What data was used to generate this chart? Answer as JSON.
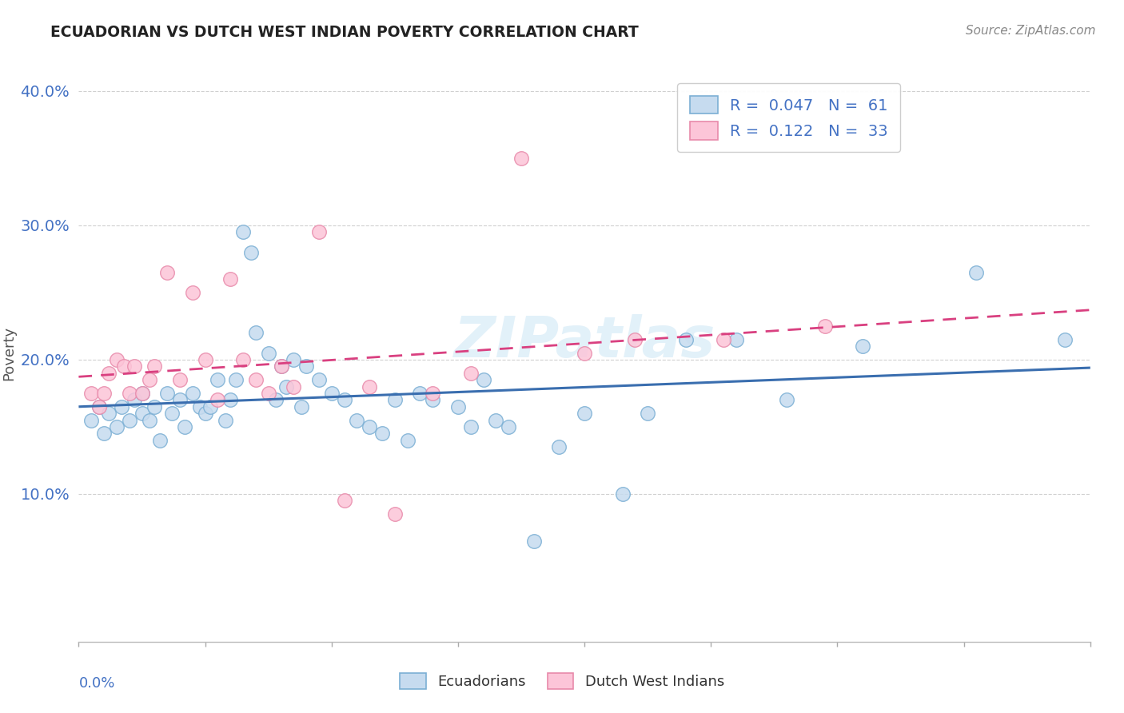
{
  "title": "ECUADORIAN VS DUTCH WEST INDIAN POVERTY CORRELATION CHART",
  "source": "Source: ZipAtlas.com",
  "ylabel": "Poverty",
  "xlim": [
    0.0,
    0.4
  ],
  "ylim": [
    -0.01,
    0.42
  ],
  "yticks": [
    0.1,
    0.2,
    0.3,
    0.4
  ],
  "ytick_labels": [
    "10.0%",
    "20.0%",
    "30.0%",
    "40.0%"
  ],
  "blue_edge": "#7bafd4",
  "blue_fill": "#c6dbef",
  "pink_edge": "#e88aaa",
  "pink_fill": "#fcc5d8",
  "blue_line_color": "#3a6eaf",
  "pink_line_color": "#d94080",
  "ecuadorians_x": [
    0.005,
    0.008,
    0.01,
    0.012,
    0.015,
    0.017,
    0.02,
    0.022,
    0.025,
    0.025,
    0.028,
    0.03,
    0.032,
    0.035,
    0.037,
    0.04,
    0.042,
    0.045,
    0.048,
    0.05,
    0.052,
    0.055,
    0.058,
    0.06,
    0.062,
    0.065,
    0.068,
    0.07,
    0.075,
    0.078,
    0.08,
    0.082,
    0.085,
    0.088,
    0.09,
    0.095,
    0.1,
    0.105,
    0.11,
    0.115,
    0.12,
    0.125,
    0.13,
    0.135,
    0.14,
    0.15,
    0.155,
    0.16,
    0.165,
    0.17,
    0.18,
    0.19,
    0.2,
    0.215,
    0.225,
    0.24,
    0.26,
    0.28,
    0.31,
    0.355,
    0.39
  ],
  "ecuadorians_y": [
    0.155,
    0.165,
    0.145,
    0.16,
    0.15,
    0.165,
    0.155,
    0.17,
    0.16,
    0.175,
    0.155,
    0.165,
    0.14,
    0.175,
    0.16,
    0.17,
    0.15,
    0.175,
    0.165,
    0.16,
    0.165,
    0.185,
    0.155,
    0.17,
    0.185,
    0.295,
    0.28,
    0.22,
    0.205,
    0.17,
    0.195,
    0.18,
    0.2,
    0.165,
    0.195,
    0.185,
    0.175,
    0.17,
    0.155,
    0.15,
    0.145,
    0.17,
    0.14,
    0.175,
    0.17,
    0.165,
    0.15,
    0.185,
    0.155,
    0.15,
    0.065,
    0.135,
    0.16,
    0.1,
    0.16,
    0.215,
    0.215,
    0.17,
    0.21,
    0.265,
    0.215
  ],
  "dutch_x": [
    0.005,
    0.008,
    0.01,
    0.012,
    0.015,
    0.018,
    0.02,
    0.022,
    0.025,
    0.028,
    0.03,
    0.035,
    0.04,
    0.045,
    0.05,
    0.055,
    0.06,
    0.065,
    0.07,
    0.075,
    0.08,
    0.085,
    0.095,
    0.105,
    0.115,
    0.125,
    0.14,
    0.155,
    0.175,
    0.2,
    0.22,
    0.255,
    0.295
  ],
  "dutch_y": [
    0.175,
    0.165,
    0.175,
    0.19,
    0.2,
    0.195,
    0.175,
    0.195,
    0.175,
    0.185,
    0.195,
    0.265,
    0.185,
    0.25,
    0.2,
    0.17,
    0.26,
    0.2,
    0.185,
    0.175,
    0.195,
    0.18,
    0.295,
    0.095,
    0.18,
    0.085,
    0.175,
    0.19,
    0.35,
    0.205,
    0.215,
    0.215,
    0.225
  ]
}
